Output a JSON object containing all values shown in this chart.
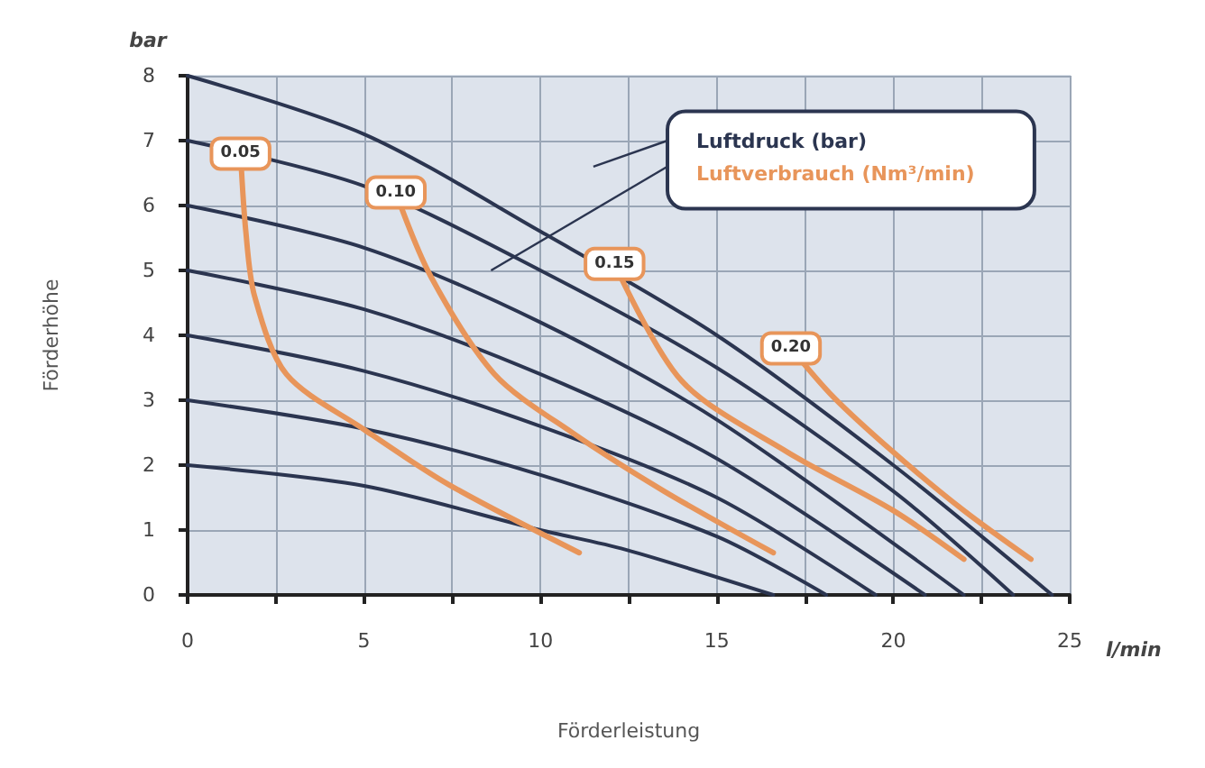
{
  "chart_data": {
    "type": "line",
    "xlabel": "Förderleistung",
    "ylabel": "Förderhöhe",
    "annotations": [
      "bar",
      "l/min",
      "Luftdruck (bar)",
      "Luftverbrauch (Nm³/min)"
    ],
    "xlim": [
      0,
      25
    ],
    "xticks": [
      0,
      {
        "value": 2.5,
        "label": null
      },
      5,
      {
        "value": 7.5,
        "label": null
      },
      10,
      {
        "value": 12.5,
        "label": null
      },
      15,
      {
        "value": 17.5,
        "label": null
      },
      20,
      {
        "value": 22.5,
        "label": null
      },
      25
    ],
    "ylim": [
      0,
      8
    ],
    "yticks": [
      0,
      1,
      2,
      3,
      4,
      5,
      6,
      7,
      8
    ],
    "grid": true,
    "marker": "none",
    "line_style": "solid",
    "series": [
      {
        "color": "#2b3550",
        "x": [
          0,
          5,
          10,
          12.4,
          16.6
        ],
        "values": [
          2,
          1.68,
          1.0,
          0.7,
          0
        ]
      },
      {
        "color": "#2b3550",
        "x": [
          0,
          5,
          10,
          15,
          18.1
        ],
        "values": [
          3,
          2.56,
          1.85,
          0.9,
          0
        ]
      },
      {
        "color": "#2b3550",
        "x": [
          0,
          5,
          10,
          15,
          19.5
        ],
        "values": [
          4,
          3.45,
          2.6,
          1.5,
          0
        ]
      },
      {
        "color": "#2b3550",
        "x": [
          0,
          5,
          10,
          15,
          20.9
        ],
        "values": [
          5,
          4.4,
          3.4,
          2.1,
          0
        ]
      },
      {
        "color": "#2b3550",
        "x": [
          0,
          5,
          10,
          15,
          22
        ],
        "values": [
          6,
          5.35,
          4.2,
          2.7,
          0
        ]
      },
      {
        "color": "#2b3550",
        "x": [
          0,
          5,
          10,
          15,
          20,
          23.4
        ],
        "values": [
          7,
          6.3,
          5.0,
          3.5,
          1.6,
          0
        ]
      },
      {
        "color": "#2b3550",
        "x": [
          0,
          5,
          10,
          15,
          20,
          24.5
        ],
        "values": [
          8,
          7.1,
          5.6,
          4.0,
          2.0,
          0
        ]
      },
      {
        "name": "0.05",
        "color": "#e8955a",
        "x": [
          1.5,
          1.65,
          1.9,
          2.8,
          5,
          7.4,
          11.1
        ],
        "values": [
          6.8,
          5.6,
          4.6,
          3.4,
          2.55,
          1.7,
          0.65
        ]
      },
      {
        "name": "0.10",
        "color": "#e8955a",
        "x": [
          5.9,
          6.9,
          8.7,
          10.9,
          13.5,
          16.6
        ],
        "values": [
          6.2,
          4.9,
          3.4,
          2.5,
          1.6,
          0.65
        ]
      },
      {
        "name": "0.15",
        "color": "#e8955a",
        "x": [
          12.1,
          14,
          17,
          20,
          22
        ],
        "values": [
          5.1,
          3.3,
          2.2,
          1.3,
          0.55
        ]
      },
      {
        "name": "0.20",
        "color": "#e8955a",
        "x": [
          17.1,
          18.3,
          20,
          22,
          23.9
        ],
        "values": [
          3.8,
          3.05,
          2.2,
          1.3,
          0.55
        ]
      }
    ]
  }
}
